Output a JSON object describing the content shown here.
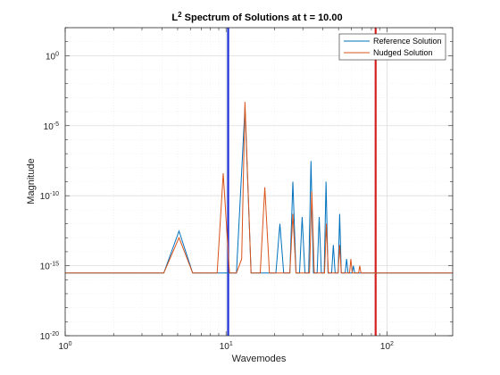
{
  "chart_data": {
    "type": "line",
    "title": {
      "prefix": "L",
      "superscript": "2",
      "rest": " Spectrum of Solutions at t = 10.00"
    },
    "xlabel": "Wavemodes",
    "ylabel": "Magnitude",
    "x_scale": "log",
    "y_scale": "log",
    "xlim": [
      1,
      256
    ],
    "ylim": [
      1e-20,
      100.0
    ],
    "grid": true,
    "legend_position": "top-right",
    "x_ticks": [
      {
        "value": 1,
        "base": "10",
        "exp": "0"
      },
      {
        "value": 10,
        "base": "10",
        "exp": "1"
      },
      {
        "value": 100,
        "base": "10",
        "exp": "2"
      }
    ],
    "y_ticks": [
      {
        "value": 1e-20,
        "base": "10",
        "exp": "-20"
      },
      {
        "value": 1e-15,
        "base": "10",
        "exp": "-15"
      },
      {
        "value": 1e-10,
        "base": "10",
        "exp": "-10"
      },
      {
        "value": 1e-05,
        "base": "10",
        "exp": "-5"
      },
      {
        "value": 1,
        "base": "10",
        "exp": "0"
      }
    ],
    "vertical_lines": [
      {
        "x": 10.3,
        "color": "#1f2fd8"
      },
      {
        "x": 85,
        "color": "#d62020"
      }
    ],
    "series": [
      {
        "name": "Reference Solution",
        "color": "#0072BD",
        "points": [
          [
            1,
            3e-16
          ],
          [
            4.1,
            3e-16
          ],
          [
            5.1,
            3e-13
          ],
          [
            6.2,
            3e-16
          ],
          [
            8.9,
            3e-16
          ],
          [
            9.6,
            3e-16
          ],
          [
            10.2,
            3e-16
          ],
          [
            11.6,
            3e-16
          ],
          [
            13.1,
            0.0002
          ],
          [
            14.3,
            3e-16
          ],
          [
            20.4,
            3e-16
          ],
          [
            21.6,
            1e-12
          ],
          [
            22.8,
            3e-16
          ],
          [
            24.9,
            3e-16
          ],
          [
            26.0,
            1e-09
          ],
          [
            27.2,
            3e-16
          ],
          [
            28.6,
            3e-16
          ],
          [
            29.7,
            3e-12
          ],
          [
            30.9,
            3e-16
          ],
          [
            32.6,
            3e-16
          ],
          [
            33.7,
            3e-08
          ],
          [
            34.9,
            3e-16
          ],
          [
            36.8,
            3e-16
          ],
          [
            37.9,
            3e-12
          ],
          [
            39.1,
            3e-16
          ],
          [
            40.7,
            3e-16
          ],
          [
            41.8,
            1e-09
          ],
          [
            43.0,
            3e-16
          ],
          [
            45.3,
            3e-16
          ],
          [
            46.4,
            3e-14
          ],
          [
            47.6,
            3e-16
          ],
          [
            49.7,
            3e-16
          ],
          [
            50.8,
            5e-12
          ],
          [
            52.0,
            3e-16
          ],
          [
            55.0,
            3e-16
          ],
          [
            56.1,
            3e-15
          ],
          [
            57.3,
            3e-16
          ],
          [
            60.7,
            3e-16
          ],
          [
            61.8,
            1e-15
          ],
          [
            63.0,
            3e-16
          ],
          [
            256,
            3e-16
          ]
        ]
      },
      {
        "name": "Nudged Solution",
        "color": "#D95319",
        "points": [
          [
            1,
            3e-16
          ],
          [
            4.1,
            3e-16
          ],
          [
            5.1,
            1e-13
          ],
          [
            6.2,
            3e-16
          ],
          [
            8.8,
            3e-16
          ],
          [
            9.6,
            4e-09
          ],
          [
            10.5,
            3e-16
          ],
          [
            11.6,
            3e-16
          ],
          [
            12.5,
            3e-15
          ],
          [
            13.1,
            0.0005
          ],
          [
            14.3,
            3e-16
          ],
          [
            16.3,
            3e-16
          ],
          [
            17.4,
            4e-10
          ],
          [
            18.6,
            3e-16
          ],
          [
            24.9,
            3e-16
          ],
          [
            26.0,
            5e-12
          ],
          [
            27.2,
            3e-16
          ],
          [
            33.0,
            3e-16
          ],
          [
            34.1,
            2e-10
          ],
          [
            35.3,
            3e-16
          ],
          [
            40.9,
            3e-16
          ],
          [
            42.0,
            1e-12
          ],
          [
            43.2,
            3e-16
          ],
          [
            49.7,
            3e-16
          ],
          [
            50.8,
            3e-14
          ],
          [
            52.0,
            3e-16
          ],
          [
            58.5,
            3e-16
          ],
          [
            59.6,
            3e-15
          ],
          [
            60.8,
            3e-16
          ],
          [
            66.6,
            3e-16
          ],
          [
            67.7,
            1e-15
          ],
          [
            68.9,
            3e-16
          ],
          [
            256,
            3e-16
          ]
        ]
      }
    ]
  }
}
